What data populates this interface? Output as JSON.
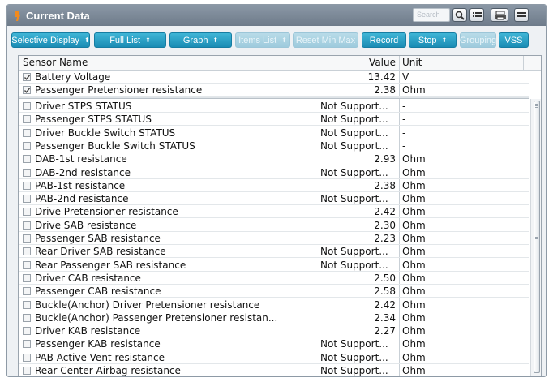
{
  "window": {
    "title": "Current Data"
  },
  "search": {
    "placeholder": "Search"
  },
  "toolbar": {
    "buttons": [
      {
        "label": "Selective Display",
        "dropdown": true,
        "enabled": true
      },
      {
        "label": "Full List",
        "dropdown": true,
        "enabled": true
      },
      {
        "label": "Graph",
        "dropdown": true,
        "enabled": true
      },
      {
        "label": "Items List",
        "dropdown": true,
        "enabled": false
      },
      {
        "label": "Reset Min Max",
        "dropdown": false,
        "enabled": false
      },
      {
        "label": "Record",
        "dropdown": false,
        "enabled": true
      },
      {
        "label": "Stop",
        "dropdown": true,
        "enabled": true
      },
      {
        "label": "Grouping",
        "dropdown": false,
        "enabled": false
      },
      {
        "label": "VSS",
        "dropdown": false,
        "enabled": true
      }
    ]
  },
  "table": {
    "headers": {
      "name": "Sensor Name",
      "value": "Value",
      "unit": "Unit"
    },
    "pinned_rows": [
      {
        "name": "Battery Voltage",
        "value": "13.42",
        "unit": "V",
        "checked": true
      },
      {
        "name": "Passenger Pretensioner resistance",
        "value": "2.38",
        "unit": "Ohm",
        "checked": true
      }
    ],
    "rows": [
      {
        "name": "Driver STPS STATUS",
        "value": "Not Support...",
        "unit": "-",
        "checked": false
      },
      {
        "name": "Passenger STPS STATUS",
        "value": "Not Support...",
        "unit": "-",
        "checked": false
      },
      {
        "name": "Driver Buckle Switch STATUS",
        "value": "Not Support...",
        "unit": "-",
        "checked": false
      },
      {
        "name": "Passenger Buckle Switch STATUS",
        "value": "Not Support...",
        "unit": "-",
        "checked": false
      },
      {
        "name": "DAB-1st resistance",
        "value": "2.93",
        "unit": "Ohm",
        "checked": false
      },
      {
        "name": "DAB-2nd resistance",
        "value": "Not Support...",
        "unit": "Ohm",
        "checked": false
      },
      {
        "name": "PAB-1st resistance",
        "value": "2.38",
        "unit": "Ohm",
        "checked": false
      },
      {
        "name": "PAB-2nd resistance",
        "value": "Not Support...",
        "unit": "Ohm",
        "checked": false
      },
      {
        "name": "Drive Pretensioner resistance",
        "value": "2.42",
        "unit": "Ohm",
        "checked": false
      },
      {
        "name": "Drive SAB resistance",
        "value": "2.30",
        "unit": "Ohm",
        "checked": false
      },
      {
        "name": "Passenger SAB resistance",
        "value": "2.23",
        "unit": "Ohm",
        "checked": false
      },
      {
        "name": "Rear Driver SAB resistance",
        "value": "Not Support...",
        "unit": "Ohm",
        "checked": false
      },
      {
        "name": "Rear Passenger SAB resistance",
        "value": "Not Support...",
        "unit": "Ohm",
        "checked": false
      },
      {
        "name": "Driver CAB resistance",
        "value": "2.50",
        "unit": "Ohm",
        "checked": false
      },
      {
        "name": "Passenger CAB resistance",
        "value": "2.58",
        "unit": "Ohm",
        "checked": false
      },
      {
        "name": "Buckle(Anchor) Driver Pretensioner resistance",
        "value": "2.42",
        "unit": "Ohm",
        "checked": false
      },
      {
        "name": "Buckle(Anchor) Passenger Pretensioner resistan...",
        "value": "2.34",
        "unit": "Ohm",
        "checked": false
      },
      {
        "name": "Driver KAB resistance",
        "value": "2.27",
        "unit": "Ohm",
        "checked": false
      },
      {
        "name": "Passenger KAB resistance",
        "value": "Not Support...",
        "unit": "Ohm",
        "checked": false
      },
      {
        "name": "PAB Active Vent resistance",
        "value": "Not Support...",
        "unit": "Ohm",
        "checked": false
      },
      {
        "name": "Rear Center Airbag resistance",
        "value": "Not Support...",
        "unit": "Ohm",
        "checked": false
      }
    ]
  },
  "icons": {
    "title": "wrench-icon",
    "search": "magnifier-icon",
    "list": "list-icon",
    "print": "printer-icon",
    "menu": "menu-icon"
  },
  "colors": {
    "accent": "#1a8cb4",
    "titlebar": "#7b8898",
    "title_icon": "#f28a1c"
  }
}
